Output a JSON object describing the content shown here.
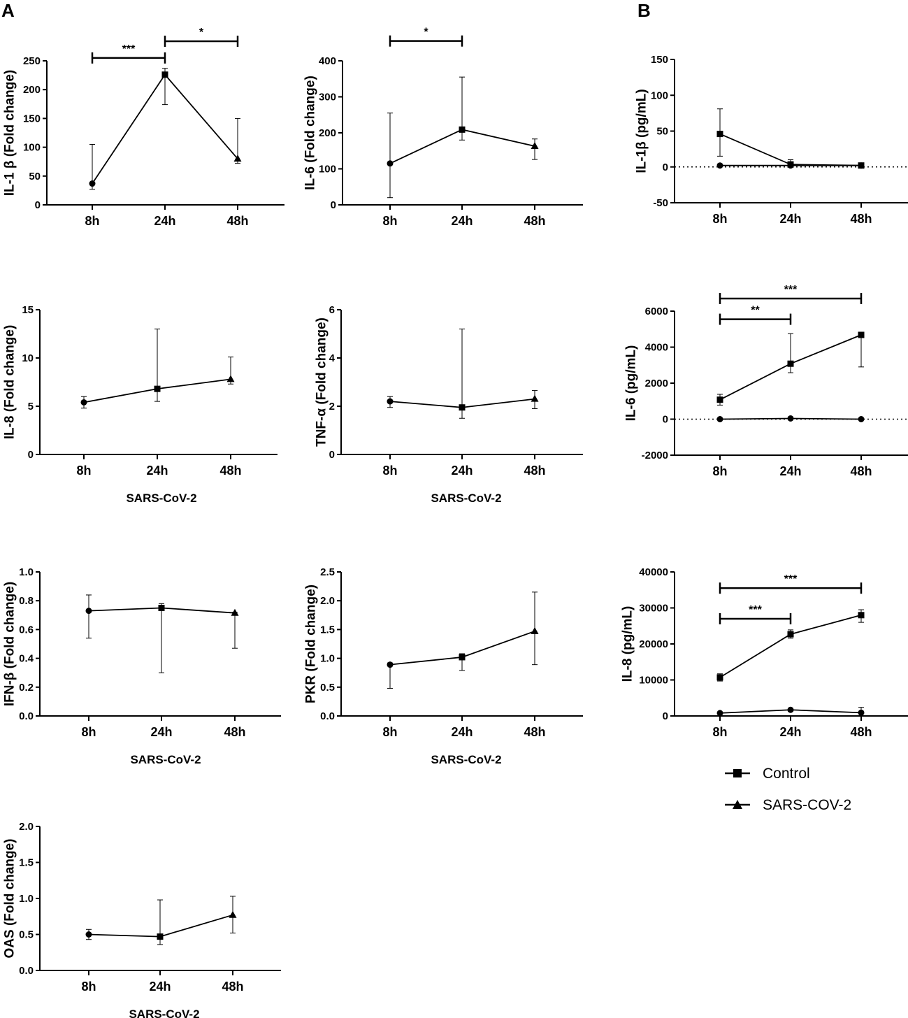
{
  "panel_labels": {
    "a": "A",
    "b": "B"
  },
  "legend": {
    "items": [
      {
        "label": "Control",
        "marker": "square"
      },
      {
        "label": "SARS-COV-2",
        "marker": "triangle"
      }
    ]
  },
  "chart_data": [
    {
      "id": "il1b_fold",
      "type": "line",
      "ylabel": "IL-1 β (Fold change)",
      "xlabel": "",
      "categories": [
        "8h",
        "24h",
        "48h"
      ],
      "ylim": [
        0,
        250
      ],
      "yticks": [
        0,
        50,
        100,
        150,
        200,
        250
      ],
      "ytick_labels": [
        "0",
        "50",
        "100",
        "150",
        "200",
        "250"
      ],
      "series": [
        {
          "name": "SARS-CoV-2",
          "points": [
            {
              "x": "8h",
              "y": 37,
              "lo": 27,
              "hi": 105,
              "marker": "circle"
            },
            {
              "x": "24h",
              "y": 226,
              "lo": 174,
              "hi": 237,
              "marker": "square"
            },
            {
              "x": "48h",
              "y": 80,
              "lo": 72,
              "hi": 150,
              "marker": "triangle"
            }
          ]
        }
      ],
      "significance": [
        {
          "from": "8h",
          "to": "24h",
          "label": "***",
          "level": 255
        },
        {
          "from": "24h",
          "to": "48h",
          "label": "*",
          "level": 284
        }
      ]
    },
    {
      "id": "il6_fold",
      "type": "line",
      "ylabel": "IL-6 (Fold change)",
      "xlabel": "",
      "categories": [
        "8h",
        "24h",
        "48h"
      ],
      "ylim": [
        0,
        400
      ],
      "yticks": [
        0,
        100,
        200,
        300,
        400
      ],
      "ytick_labels": [
        "0",
        "100",
        "200",
        "300",
        "400"
      ],
      "series": [
        {
          "name": "SARS-CoV-2",
          "points": [
            {
              "x": "8h",
              "y": 115,
              "lo": 20,
              "hi": 255,
              "marker": "circle"
            },
            {
              "x": "24h",
              "y": 209,
              "lo": 180,
              "hi": 355,
              "marker": "square"
            },
            {
              "x": "48h",
              "y": 163,
              "lo": 126,
              "hi": 183,
              "marker": "triangle"
            }
          ]
        }
      ],
      "significance": [
        {
          "from": "8h",
          "to": "24h",
          "label": "*",
          "level": 455
        }
      ]
    },
    {
      "id": "il1b_pg",
      "type": "line",
      "ylabel": "IL-1β (pg/mL)",
      "xlabel": "",
      "categories": [
        "8h",
        "24h",
        "48h"
      ],
      "ylim": [
        -50,
        150
      ],
      "yticks": [
        -50,
        0,
        50,
        100,
        150
      ],
      "ytick_labels": [
        "-50",
        "0",
        "50",
        "100",
        "150"
      ],
      "zero_line": true,
      "series": [
        {
          "name": "Control",
          "points": [
            {
              "x": "8h",
              "y": 46,
              "lo": 15,
              "hi": 81,
              "marker": "square"
            },
            {
              "x": "24h",
              "y": 3.5,
              "lo": 1,
              "hi": 10,
              "marker": "square"
            },
            {
              "x": "48h",
              "y": 2,
              "lo": 1,
              "hi": 3,
              "marker": "square"
            }
          ]
        },
        {
          "name": "SARS-CoV-2",
          "points": [
            {
              "x": "8h",
              "y": 2,
              "lo": 1,
              "hi": 3,
              "marker": "circle"
            },
            {
              "x": "24h",
              "y": 2,
              "lo": 1,
              "hi": 3,
              "marker": "circle"
            },
            {
              "x": "48h",
              "y": 2,
              "lo": 1,
              "hi": 3,
              "marker": "circle"
            }
          ]
        }
      ],
      "significance": []
    },
    {
      "id": "il8_fold",
      "type": "line",
      "ylabel": "IL-8 (Fold change)",
      "xlabel": "SARS-CoV-2",
      "categories": [
        "8h",
        "24h",
        "48h"
      ],
      "ylim": [
        0,
        15
      ],
      "yticks": [
        0,
        5,
        10,
        15
      ],
      "ytick_labels": [
        "0",
        "5",
        "10",
        "15"
      ],
      "series": [
        {
          "name": "SARS-CoV-2",
          "points": [
            {
              "x": "8h",
              "y": 5.4,
              "lo": 4.8,
              "hi": 6.0,
              "marker": "circle"
            },
            {
              "x": "24h",
              "y": 6.8,
              "lo": 5.5,
              "hi": 13.0,
              "marker": "square"
            },
            {
              "x": "48h",
              "y": 7.8,
              "lo": 7.3,
              "hi": 10.1,
              "marker": "triangle"
            }
          ]
        }
      ],
      "significance": []
    },
    {
      "id": "tnfa_fold",
      "type": "line",
      "ylabel": "TNF-α (Fold change)",
      "xlabel": "SARS-CoV-2",
      "categories": [
        "8h",
        "24h",
        "48h"
      ],
      "ylim": [
        0,
        6
      ],
      "yticks": [
        0,
        2,
        4,
        6
      ],
      "ytick_labels": [
        "0",
        "2",
        "4",
        "6"
      ],
      "series": [
        {
          "name": "SARS-CoV-2",
          "points": [
            {
              "x": "8h",
              "y": 2.2,
              "lo": 1.95,
              "hi": 2.4,
              "marker": "circle"
            },
            {
              "x": "24h",
              "y": 1.95,
              "lo": 1.5,
              "hi": 5.2,
              "marker": "square"
            },
            {
              "x": "48h",
              "y": 2.3,
              "lo": 1.9,
              "hi": 2.65,
              "marker": "triangle"
            }
          ]
        }
      ],
      "significance": []
    },
    {
      "id": "il6_pg",
      "type": "line",
      "ylabel": "IL-6 (pg/mL)",
      "xlabel": "",
      "categories": [
        "8h",
        "24h",
        "48h"
      ],
      "ylim": [
        -2000,
        6000
      ],
      "yticks": [
        -2000,
        0,
        2000,
        4000,
        6000
      ],
      "ytick_labels": [
        "-2000",
        "0",
        "2000",
        "4000",
        "6000"
      ],
      "zero_line": true,
      "series": [
        {
          "name": "Control",
          "points": [
            {
              "x": "8h",
              "y": 1080,
              "lo": 780,
              "hi": 1380,
              "marker": "square"
            },
            {
              "x": "24h",
              "y": 3080,
              "lo": 2580,
              "hi": 4750,
              "marker": "square"
            },
            {
              "x": "48h",
              "y": 4680,
              "lo": 2900,
              "hi": 4760,
              "marker": "square"
            }
          ]
        },
        {
          "name": "SARS-CoV-2",
          "points": [
            {
              "x": "8h",
              "y": 0,
              "lo": -30,
              "hi": 30,
              "marker": "circle"
            },
            {
              "x": "24h",
              "y": 40,
              "lo": 0,
              "hi": 80,
              "marker": "circle"
            },
            {
              "x": "48h",
              "y": 0,
              "lo": -30,
              "hi": 30,
              "marker": "circle"
            }
          ]
        }
      ],
      "significance": [
        {
          "from": "8h",
          "to": "24h",
          "label": "**",
          "level": 5550
        },
        {
          "from": "8h",
          "to": "48h",
          "label": "***",
          "level": 6700
        }
      ]
    },
    {
      "id": "ifnb_fold",
      "type": "line",
      "ylabel": "IFN-β (Fold change)",
      "xlabel": "SARS-CoV-2",
      "categories": [
        "8h",
        "24h",
        "48h"
      ],
      "ylim": [
        0,
        1.0
      ],
      "yticks": [
        0,
        0.2,
        0.4,
        0.6,
        0.8,
        1.0
      ],
      "ytick_labels": [
        "0.0",
        "0.2",
        "0.4",
        "0.6",
        "0.8",
        "1.0"
      ],
      "series": [
        {
          "name": "SARS-CoV-2",
          "points": [
            {
              "x": "8h",
              "y": 0.73,
              "lo": 0.54,
              "hi": 0.84,
              "marker": "circle"
            },
            {
              "x": "24h",
              "y": 0.75,
              "lo": 0.3,
              "hi": 0.78,
              "marker": "square"
            },
            {
              "x": "48h",
              "y": 0.715,
              "lo": 0.47,
              "hi": 0.72,
              "marker": "triangle"
            }
          ]
        }
      ],
      "significance": []
    },
    {
      "id": "pkr_fold",
      "type": "line",
      "ylabel": "PKR (Fold change)",
      "xlabel": "SARS-CoV-2",
      "categories": [
        "8h",
        "24h",
        "48h"
      ],
      "ylim": [
        0,
        2.5
      ],
      "yticks": [
        0,
        0.5,
        1.0,
        1.5,
        2.0,
        2.5
      ],
      "ytick_labels": [
        "0.0",
        "0.5",
        "1.0",
        "1.5",
        "2.0",
        "2.5"
      ],
      "series": [
        {
          "name": "SARS-CoV-2",
          "points": [
            {
              "x": "8h",
              "y": 0.89,
              "lo": 0.48,
              "hi": 0.92,
              "marker": "circle"
            },
            {
              "x": "24h",
              "y": 1.02,
              "lo": 0.79,
              "hi": 1.08,
              "marker": "square"
            },
            {
              "x": "48h",
              "y": 1.47,
              "lo": 0.89,
              "hi": 2.15,
              "marker": "triangle"
            }
          ]
        }
      ],
      "significance": []
    },
    {
      "id": "il8_pg",
      "type": "line",
      "ylabel": "IL-8 (pg/mL)",
      "xlabel": "",
      "categories": [
        "8h",
        "24h",
        "48h"
      ],
      "ylim": [
        0,
        40000
      ],
      "yticks": [
        0,
        10000,
        20000,
        30000,
        40000
      ],
      "ytick_labels": [
        "0",
        "10000",
        "20000",
        "30000",
        "40000"
      ],
      "series": [
        {
          "name": "Control",
          "points": [
            {
              "x": "8h",
              "y": 10700,
              "lo": 9700,
              "hi": 11700,
              "marker": "square"
            },
            {
              "x": "24h",
              "y": 22700,
              "lo": 21600,
              "hi": 23900,
              "marker": "square"
            },
            {
              "x": "48h",
              "y": 28000,
              "lo": 26000,
              "hi": 29500,
              "marker": "square"
            }
          ]
        },
        {
          "name": "SARS-CoV-2",
          "points": [
            {
              "x": "8h",
              "y": 800,
              "lo": 500,
              "hi": 1100,
              "marker": "circle"
            },
            {
              "x": "24h",
              "y": 1700,
              "lo": 1300,
              "hi": 2100,
              "marker": "circle"
            },
            {
              "x": "48h",
              "y": 900,
              "lo": 0,
              "hi": 2400,
              "marker": "circle"
            }
          ]
        }
      ],
      "significance": [
        {
          "from": "8h",
          "to": "24h",
          "label": "***",
          "level": 27000
        },
        {
          "from": "8h",
          "to": "48h",
          "label": "***",
          "level": 35500
        }
      ]
    },
    {
      "id": "oas_fold",
      "type": "line",
      "ylabel": "OAS (Fold change)",
      "xlabel": "SARS-CoV-2",
      "categories": [
        "8h",
        "24h",
        "48h"
      ],
      "ylim": [
        0,
        2.0
      ],
      "yticks": [
        0,
        0.5,
        1.0,
        1.5,
        2.0
      ],
      "ytick_labels": [
        "0.0",
        "0.5",
        "1.0",
        "1.5",
        "2.0"
      ],
      "series": [
        {
          "name": "SARS-CoV-2",
          "points": [
            {
              "x": "8h",
              "y": 0.5,
              "lo": 0.43,
              "hi": 0.57,
              "marker": "circle"
            },
            {
              "x": "24h",
              "y": 0.47,
              "lo": 0.36,
              "hi": 0.98,
              "marker": "square"
            },
            {
              "x": "48h",
              "y": 0.77,
              "lo": 0.52,
              "hi": 1.03,
              "marker": "triangle"
            }
          ]
        }
      ],
      "significance": []
    }
  ]
}
